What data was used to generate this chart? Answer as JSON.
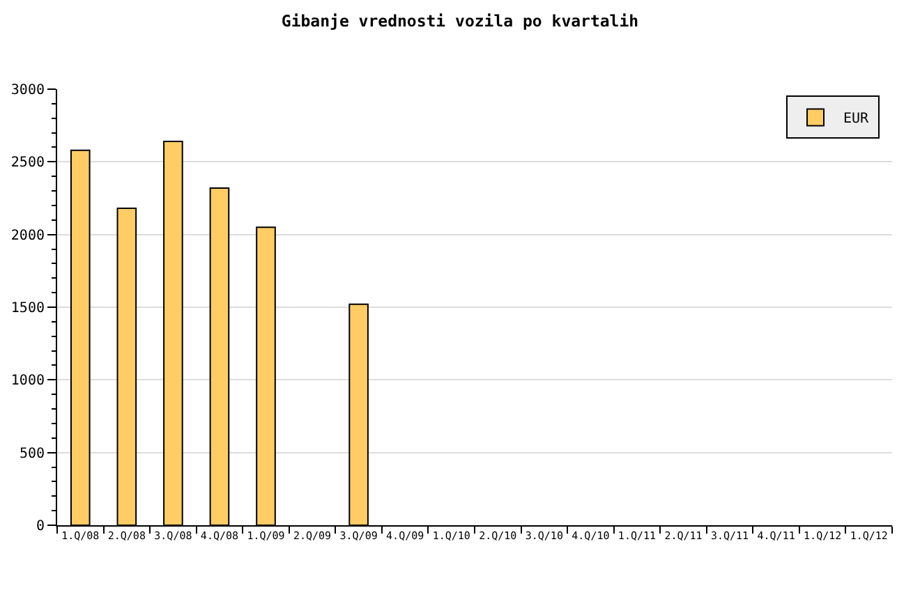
{
  "chart_data": {
    "type": "bar",
    "title": "Gibanje vrednosti vozila po kvartalih",
    "categories": [
      "1.Q/08",
      "2.Q/08",
      "3.Q/08",
      "4.Q/08",
      "1.Q/09",
      "2.Q/09",
      "3.Q/09",
      "4.Q/09",
      "1.Q/10",
      "2.Q/10",
      "3.Q/10",
      "4.Q/10",
      "1.Q/11",
      "2.Q/11",
      "3.Q/11",
      "4.Q/11",
      "1.Q/12",
      "1.Q/12"
    ],
    "series": [
      {
        "name": "EUR",
        "color": "#ffcc66",
        "values": [
          2580,
          2180,
          2640,
          2320,
          2050,
          null,
          1520,
          null,
          null,
          null,
          null,
          null,
          null,
          null,
          null,
          null,
          null,
          null
        ]
      }
    ],
    "ylim": [
      0,
      3000
    ],
    "yticks": [
      0,
      {
        "value": 100,
        "label": null
      },
      {
        "value": 200,
        "label": null
      },
      {
        "value": 300,
        "label": null
      },
      {
        "value": 400,
        "label": null
      },
      500,
      {
        "value": 600,
        "label": null
      },
      {
        "value": 700,
        "label": null
      },
      {
        "value": 800,
        "label": null
      },
      {
        "value": 900,
        "label": null
      },
      1000,
      {
        "value": 1100,
        "label": null
      },
      {
        "value": 1200,
        "label": null
      },
      {
        "value": 1300,
        "label": null
      },
      {
        "value": 1400,
        "label": null
      },
      1500,
      {
        "value": 1600,
        "label": null
      },
      {
        "value": 1700,
        "label": null
      },
      {
        "value": 1800,
        "label": null
      },
      {
        "value": 1900,
        "label": null
      },
      2000,
      {
        "value": 2100,
        "label": null
      },
      {
        "value": 2200,
        "label": null
      },
      {
        "value": 2300,
        "label": null
      },
      {
        "value": 2400,
        "label": null
      },
      2500,
      {
        "value": 2600,
        "label": null
      },
      {
        "value": 2700,
        "label": null
      },
      {
        "value": 2800,
        "label": null
      },
      {
        "value": 2900,
        "label": null
      },
      3000
    ],
    "grid": "y",
    "legend": "top right"
  }
}
